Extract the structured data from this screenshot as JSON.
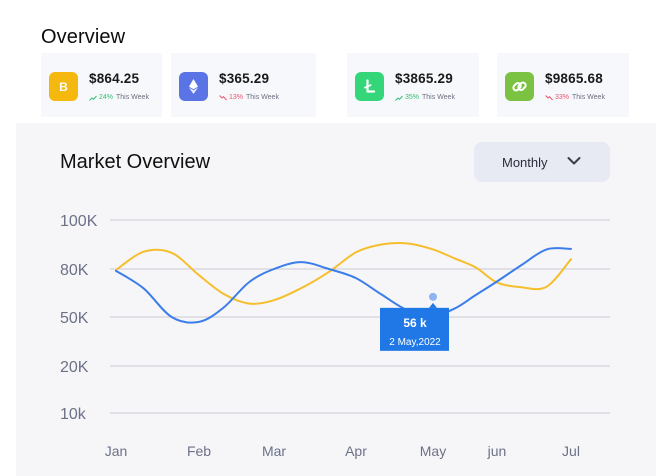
{
  "overview": {
    "title": "Overview"
  },
  "cards": [
    {
      "icon": "bitcoin-icon",
      "color": "#f5b80f",
      "price": "$864.25",
      "trend": "up",
      "percent": "24%",
      "period": "This Week"
    },
    {
      "icon": "ethereum-icon",
      "color": "#5a74e6",
      "price": "$365.29",
      "trend": "down",
      "percent": "13%",
      "period": "This Week"
    },
    {
      "icon": "litecoin-icon",
      "color": "#35d67a",
      "price": "$3865.29",
      "trend": "up",
      "percent": "35%",
      "period": "This Week"
    },
    {
      "icon": "chain-link-icon",
      "color": "#7cc242",
      "price": "$9865.68",
      "trend": "down",
      "percent": "33%",
      "period": "This Week"
    }
  ],
  "market": {
    "title": "Market Overview",
    "dropdown": {
      "selected": "Monthly"
    }
  },
  "chart_data": {
    "type": "line",
    "title": "",
    "xlabel": "",
    "ylabel": "",
    "x": [
      "Jan",
      "Feb",
      "Mar",
      "Apr",
      "May",
      "jun",
      "Jul"
    ],
    "y_ticks": [
      "100K",
      "80K",
      "50K",
      "20K",
      "10k"
    ],
    "grid": "horizontal",
    "series": [
      {
        "color": "#3b7dea",
        "values": [
          [
            0,
            1.04
          ],
          [
            0.33,
            1.4
          ],
          [
            0.67,
            2.0
          ],
          [
            1.0,
            2.1
          ],
          [
            1.33,
            1.8
          ],
          [
            1.67,
            1.27
          ],
          [
            2.0,
            1.0
          ],
          [
            2.33,
            0.86
          ],
          [
            2.67,
            1.0
          ],
          [
            3.0,
            1.19
          ],
          [
            3.33,
            1.53
          ],
          [
            3.67,
            1.86
          ],
          [
            4.0,
            1.96
          ],
          [
            4.33,
            1.83
          ],
          [
            4.67,
            1.54
          ],
          [
            5.0,
            1.26
          ],
          [
            5.33,
            0.92
          ],
          [
            5.67,
            0.6
          ],
          [
            6.0,
            0.59
          ]
        ]
      },
      {
        "color": "#f5be2c",
        "values": [
          [
            0,
            1.02
          ],
          [
            0.33,
            0.65
          ],
          [
            0.67,
            0.67
          ],
          [
            1.0,
            1.13
          ],
          [
            1.33,
            1.52
          ],
          [
            1.67,
            1.72
          ],
          [
            2.0,
            1.65
          ],
          [
            2.33,
            1.4
          ],
          [
            2.67,
            1.06
          ],
          [
            3.0,
            0.66
          ],
          [
            3.33,
            0.5
          ],
          [
            3.67,
            0.48
          ],
          [
            4.0,
            0.6
          ],
          [
            4.33,
            0.78
          ],
          [
            4.67,
            0.97
          ],
          [
            5.0,
            1.28
          ],
          [
            5.33,
            1.38
          ],
          [
            5.67,
            1.37
          ],
          [
            6.0,
            0.8
          ]
        ]
      }
    ],
    "tooltip": {
      "value": "56 k",
      "date": "2 May,2022",
      "x_index": 4.0,
      "y": 1.58
    }
  }
}
